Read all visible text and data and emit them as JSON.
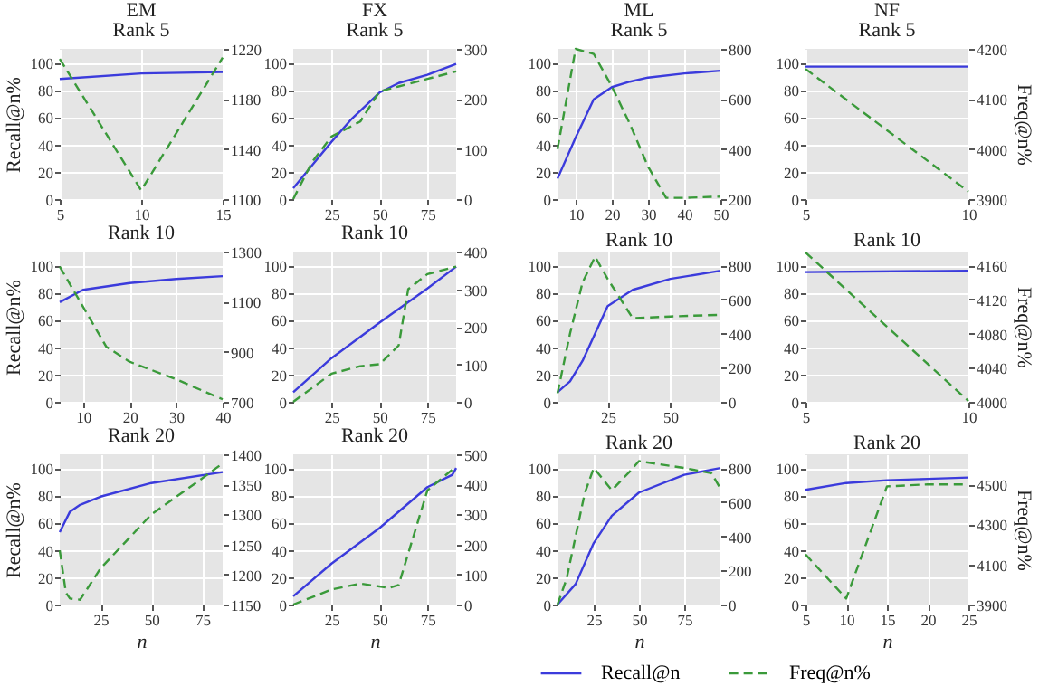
{
  "chart_data": [
    {
      "type": "line",
      "title": "EM",
      "subtitle": "Rank 5",
      "ylabel": "Recall@n%",
      "xlim": [
        5,
        15
      ],
      "xticks": [
        5,
        10,
        15
      ],
      "ylim": [
        0,
        110
      ],
      "yticks": [
        0,
        20,
        40,
        60,
        80,
        100
      ],
      "y2lim": [
        1100,
        1220
      ],
      "y2ticks": [
        1100,
        1140,
        1180,
        1220
      ],
      "grid": true,
      "series": [
        {
          "color": "#3b3bdc",
          "line_style": "solid",
          "x": [
            5,
            10,
            15
          ],
          "values": [
            88,
            92,
            93
          ]
        },
        {
          "color": "#3a9a3a",
          "line_style": "dashed",
          "axis": "y2",
          "x": [
            5,
            10,
            15
          ],
          "values": [
            1212,
            1107,
            1213
          ]
        }
      ]
    },
    {
      "type": "line",
      "title": "FX",
      "subtitle": "Rank 5",
      "xlim": [
        5,
        90
      ],
      "xticks": [
        25,
        50,
        75
      ],
      "ylim": [
        0,
        110
      ],
      "yticks": [
        0,
        20,
        40,
        60,
        80,
        100
      ],
      "y2lim": [
        0,
        300
      ],
      "y2ticks": [
        0,
        100,
        200,
        300
      ],
      "grid": true,
      "series": [
        {
          "color": "#3b3bdc",
          "line_style": "solid",
          "x": [
            5,
            15,
            25,
            35,
            50,
            60,
            75,
            90
          ],
          "values": [
            8,
            25,
            42,
            58,
            78,
            85,
            91,
            99
          ]
        },
        {
          "color": "#3a9a3a",
          "line_style": "dashed",
          "axis": "y2",
          "x": [
            5,
            15,
            25,
            40,
            50,
            60,
            75,
            90
          ],
          "values": [
            0,
            75,
            125,
            155,
            215,
            225,
            240,
            255
          ]
        }
      ]
    },
    {
      "type": "line",
      "title": "ML",
      "subtitle": "Rank 5",
      "xlim": [
        5,
        50
      ],
      "xticks": [
        10,
        20,
        30,
        40,
        50
      ],
      "ylim": [
        0,
        110
      ],
      "yticks": [
        0,
        20,
        40,
        60,
        80,
        100
      ],
      "y2lim": [
        200,
        800
      ],
      "y2ticks": [
        200,
        400,
        600,
        800
      ],
      "grid": true,
      "series": [
        {
          "color": "#3b3bdc",
          "line_style": "solid",
          "x": [
            5,
            10,
            15,
            20,
            25,
            30,
            40,
            50
          ],
          "values": [
            15,
            45,
            73,
            82,
            86,
            89,
            92,
            94
          ]
        },
        {
          "color": "#3a9a3a",
          "line_style": "dashed",
          "axis": "y2",
          "x": [
            5,
            10,
            15,
            20,
            25,
            30,
            35,
            40,
            50
          ],
          "values": [
            400,
            800,
            780,
            650,
            500,
            330,
            205,
            205,
            210
          ]
        }
      ]
    },
    {
      "type": "line",
      "title": "NF",
      "subtitle": "Rank 5",
      "y2label": "Freq@n%",
      "xlim": [
        5,
        10
      ],
      "xticks": [
        5,
        10
      ],
      "ylim": [
        0,
        110
      ],
      "yticks": [
        0,
        20,
        40,
        60,
        80,
        100
      ],
      "y2lim": [
        3900,
        4200
      ],
      "y2ticks": [
        3900,
        4000,
        4100,
        4200
      ],
      "grid": true,
      "series": [
        {
          "color": "#3b3bdc",
          "line_style": "solid",
          "x": [
            5,
            10
          ],
          "values": [
            97,
            97
          ]
        },
        {
          "color": "#3a9a3a",
          "line_style": "dashed",
          "axis": "y2",
          "x": [
            5,
            10
          ],
          "values": [
            4160,
            3915
          ]
        }
      ]
    },
    {
      "type": "line",
      "title": "Rank 10",
      "ylabel": "Recall@n%",
      "xlim": [
        5,
        40
      ],
      "xticks": [
        10,
        20,
        30,
        40
      ],
      "ylim": [
        0,
        110
      ],
      "yticks": [
        0,
        20,
        40,
        60,
        80,
        100
      ],
      "y2lim": [
        700,
        1300
      ],
      "y2ticks": [
        700,
        900,
        1100,
        1300
      ],
      "grid": true,
      "series": [
        {
          "color": "#3b3bdc",
          "line_style": "solid",
          "x": [
            5,
            10,
            20,
            30,
            40
          ],
          "values": [
            73,
            82,
            87,
            90,
            92
          ]
        },
        {
          "color": "#3a9a3a",
          "line_style": "dashed",
          "axis": "y2",
          "x": [
            5,
            10,
            15,
            20,
            30,
            40
          ],
          "values": [
            1240,
            1080,
            920,
            860,
            790,
            710
          ]
        }
      ]
    },
    {
      "type": "line",
      "title": "Rank 10",
      "xlim": [
        5,
        90
      ],
      "xticks": [
        25,
        50,
        75
      ],
      "ylim": [
        0,
        110
      ],
      "yticks": [
        0,
        20,
        40,
        60,
        80,
        100
      ],
      "y2lim": [
        0,
        400
      ],
      "y2ticks": [
        0,
        100,
        200,
        300,
        400
      ],
      "grid": true,
      "series": [
        {
          "color": "#3b3bdc",
          "line_style": "solid",
          "x": [
            5,
            25,
            50,
            75,
            90
          ],
          "values": [
            7,
            32,
            58,
            83,
            99
          ]
        },
        {
          "color": "#3a9a3a",
          "line_style": "dashed",
          "axis": "y2",
          "x": [
            5,
            25,
            40,
            50,
            60,
            65,
            75,
            90
          ],
          "values": [
            0,
            75,
            95,
            100,
            150,
            300,
            340,
            360
          ]
        }
      ]
    },
    {
      "type": "line",
      "title": "Rank 10",
      "xlim": [
        5,
        70
      ],
      "xticks": [
        25,
        50
      ],
      "ylim": [
        0,
        110
      ],
      "yticks": [
        0,
        20,
        40,
        60,
        80,
        100
      ],
      "y2lim": [
        0,
        880
      ],
      "y2ticks": [
        0,
        200,
        400,
        600,
        800
      ],
      "grid": true,
      "series": [
        {
          "color": "#3b3bdc",
          "line_style": "solid",
          "x": [
            5,
            10,
            15,
            20,
            25,
            35,
            50,
            70
          ],
          "values": [
            7,
            15,
            30,
            50,
            70,
            82,
            90,
            96
          ]
        },
        {
          "color": "#3a9a3a",
          "line_style": "dashed",
          "axis": "y2",
          "x": [
            5,
            10,
            15,
            20,
            25,
            35,
            50,
            70
          ],
          "values": [
            50,
            400,
            700,
            850,
            720,
            490,
            500,
            510
          ]
        }
      ]
    },
    {
      "type": "line",
      "title": "Rank 10",
      "y2label": "Freq@n%",
      "xlim": [
        5,
        10
      ],
      "xticks": [
        5,
        10
      ],
      "ylim": [
        0,
        110
      ],
      "yticks": [
        0,
        20,
        40,
        60,
        80,
        100
      ],
      "y2lim": [
        4000,
        4176
      ],
      "y2ticks": [
        4000,
        4040,
        4080,
        4120,
        4160
      ],
      "grid": true,
      "series": [
        {
          "color": "#3b3bdc",
          "line_style": "solid",
          "x": [
            5,
            10
          ],
          "values": [
            95,
            96
          ]
        },
        {
          "color": "#3a9a3a",
          "line_style": "dashed",
          "axis": "y2",
          "x": [
            5,
            10
          ],
          "values": [
            4175,
            4001
          ]
        }
      ]
    },
    {
      "type": "line",
      "title": "Rank 20",
      "xlabel": "n",
      "ylabel": "Recall@n%",
      "xlim": [
        5,
        85
      ],
      "xticks": [
        25,
        50,
        75
      ],
      "ylim": [
        0,
        110
      ],
      "yticks": [
        0,
        20,
        40,
        60,
        80,
        100
      ],
      "y2lim": [
        1150,
        1400
      ],
      "y2ticks": [
        1150,
        1200,
        1250,
        1300,
        1350,
        1400
      ],
      "grid": true,
      "series": [
        {
          "color": "#3b3bdc",
          "line_style": "solid",
          "x": [
            5,
            10,
            15,
            25,
            50,
            85
          ],
          "values": [
            53,
            68,
            73,
            79,
            89,
            97
          ]
        },
        {
          "color": "#3a9a3a",
          "line_style": "dashed",
          "axis": "y2",
          "x": [
            5,
            8,
            10,
            15,
            25,
            50,
            75,
            85
          ],
          "values": [
            1240,
            1170,
            1160,
            1158,
            1210,
            1300,
            1360,
            1385
          ]
        }
      ]
    },
    {
      "type": "line",
      "title": "Rank 20",
      "xlabel": "n",
      "xlim": [
        5,
        90
      ],
      "xticks": [
        25,
        50,
        75
      ],
      "ylim": [
        0,
        110
      ],
      "yticks": [
        0,
        20,
        40,
        60,
        80,
        100
      ],
      "y2lim": [
        0,
        500
      ],
      "y2ticks": [
        0,
        100,
        200,
        300,
        400,
        500
      ],
      "grid": true,
      "series": [
        {
          "color": "#3b3bdc",
          "line_style": "solid",
          "x": [
            5,
            25,
            50,
            75,
            88,
            90
          ],
          "values": [
            6,
            30,
            56,
            86,
            95,
            100
          ]
        },
        {
          "color": "#3a9a3a",
          "line_style": "dashed",
          "axis": "y2",
          "x": [
            5,
            25,
            40,
            55,
            60,
            75,
            90
          ],
          "values": [
            0,
            50,
            70,
            55,
            65,
            380,
            460
          ]
        }
      ]
    },
    {
      "type": "line",
      "title": "Rank 20",
      "xlabel": "n",
      "xlim": [
        5,
        95
      ],
      "xticks": [
        25,
        50,
        75
      ],
      "ylim": [
        0,
        110
      ],
      "yticks": [
        0,
        20,
        40,
        60,
        80,
        100
      ],
      "y2lim": [
        0,
        880
      ],
      "y2ticks": [
        0,
        200,
        400,
        600,
        800
      ],
      "grid": true,
      "legend": "bottom",
      "series": [
        {
          "name": "Recall@n",
          "color": "#3b3bdc",
          "line_style": "solid",
          "x": [
            5,
            15,
            25,
            35,
            50,
            75,
            95
          ],
          "values": [
            0,
            15,
            45,
            65,
            82,
            95,
            100
          ]
        },
        {
          "name": "Freq@n%",
          "color": "#3a9a3a",
          "line_style": "dashed",
          "axis": "y2",
          "x": [
            5,
            10,
            20,
            25,
            35,
            45,
            50,
            75,
            90,
            95
          ],
          "values": [
            0,
            150,
            650,
            800,
            670,
            780,
            840,
            800,
            770,
            680
          ]
        }
      ]
    },
    {
      "type": "line",
      "title": "Rank 20",
      "xlabel": "n",
      "y2label": "Freq@n%",
      "xlim": [
        5,
        25
      ],
      "xticks": [
        5,
        10,
        15,
        20,
        25
      ],
      "ylim": [
        0,
        110
      ],
      "yticks": [
        0,
        20,
        40,
        60,
        80,
        100
      ],
      "y2lim": [
        3900,
        4650
      ],
      "y2ticks": [
        3900,
        4100,
        4300,
        4500
      ],
      "grid": true,
      "series": [
        {
          "color": "#3b3bdc",
          "line_style": "solid",
          "x": [
            5,
            10,
            15,
            20,
            25
          ],
          "values": [
            84,
            89,
            91,
            92,
            93
          ]
        },
        {
          "color": "#3a9a3a",
          "line_style": "dashed",
          "axis": "y2",
          "x": [
            5,
            10,
            15,
            20,
            25
          ],
          "values": [
            4150,
            3930,
            4490,
            4500,
            4500
          ]
        }
      ]
    }
  ]
}
